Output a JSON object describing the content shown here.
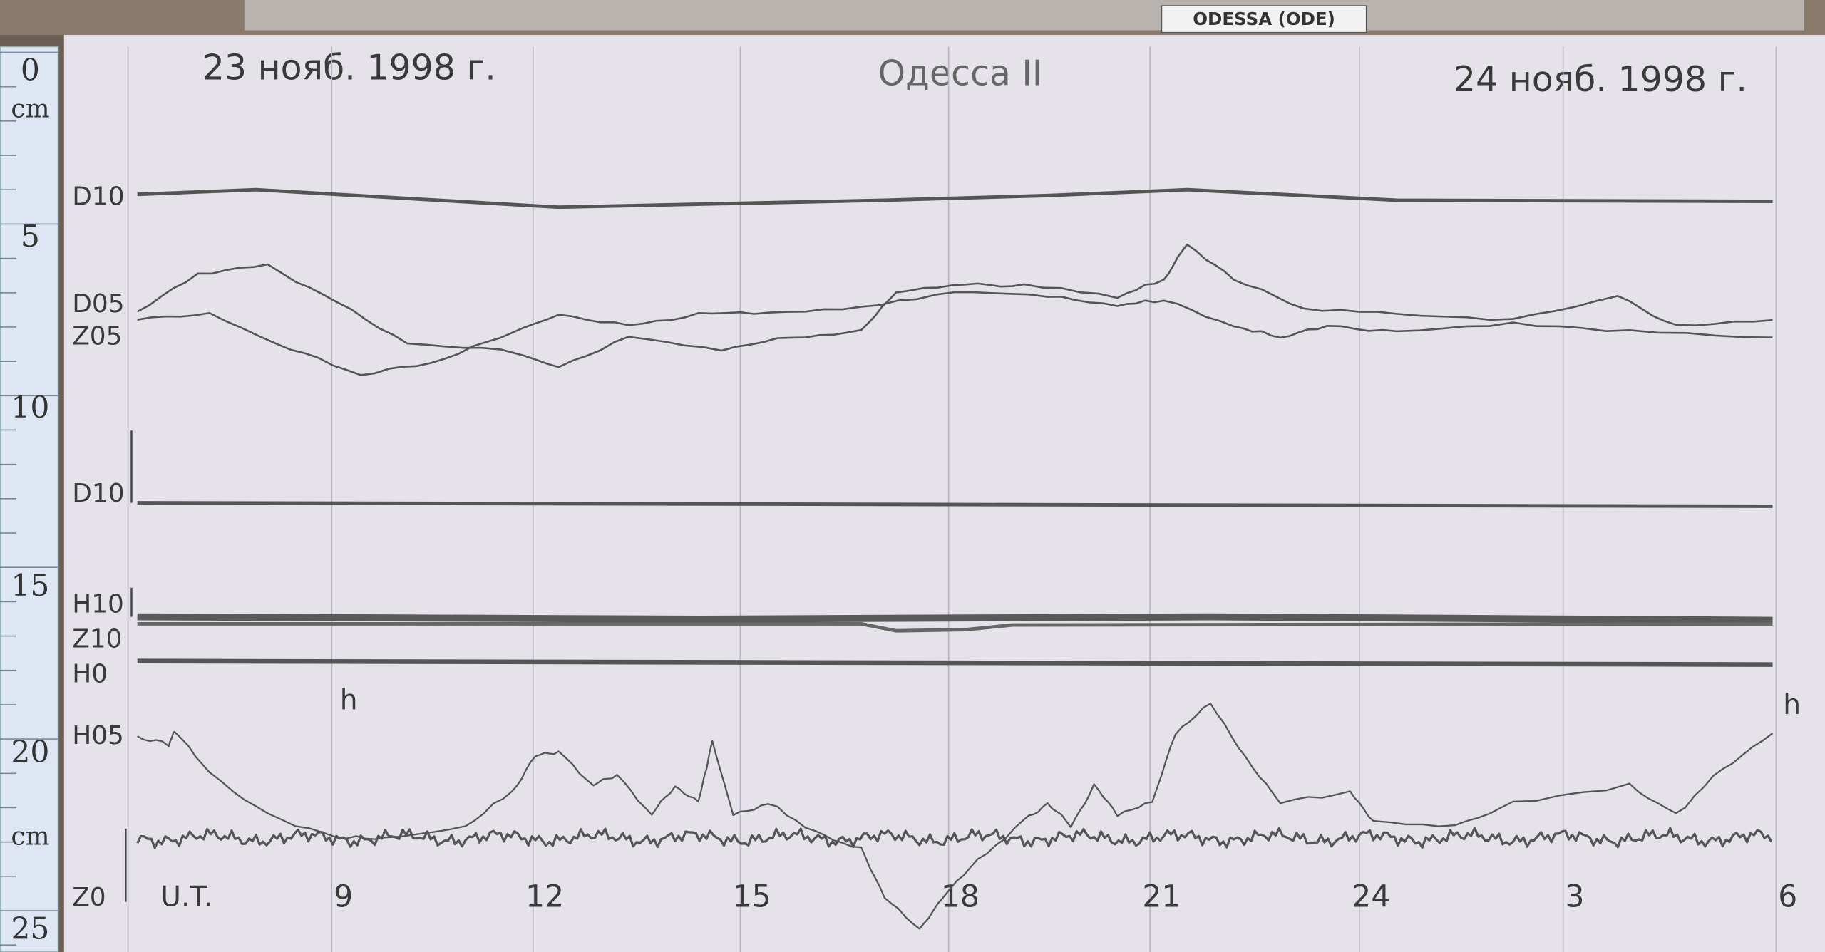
{
  "header": {
    "station": "ODESSA (ODE)",
    "date_left": "23 нояб. 1998 г.",
    "title": "Одесса II",
    "date_right": "24 нояб. 1998 г."
  },
  "ruler": [
    "0",
    "cm",
    "5",
    "10",
    "15",
    "20",
    "cm",
    "25"
  ],
  "traces": [
    "D10",
    "D05",
    "Z05",
    "D10",
    "H10",
    "Z10",
    "H0",
    "H05",
    "Z0"
  ],
  "hour_marks": [
    "h",
    "h"
  ],
  "time_axis": {
    "label": "U.T.",
    "hours": [
      "9",
      "12",
      "15",
      "18",
      "21",
      "24",
      "3",
      "6"
    ]
  }
}
